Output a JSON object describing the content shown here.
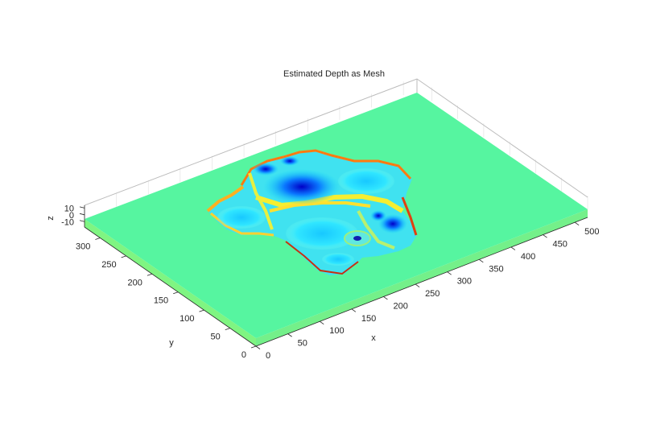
{
  "chart_data": {
    "type": "surface",
    "title": "Estimated Depth as Mesh",
    "xlabel": "x",
    "ylabel": "y",
    "zlabel": "z",
    "xlim": [
      0,
      520
    ],
    "ylim": [
      0,
      330
    ],
    "zlim": [
      -18,
      14
    ],
    "x_ticks": [
      0,
      50,
      100,
      150,
      200,
      250,
      300,
      350,
      400,
      450,
      500
    ],
    "y_ticks": [
      0,
      50,
      100,
      150,
      200,
      250,
      300
    ],
    "z_ticks": [
      -10,
      0,
      10
    ],
    "grid": true,
    "colormap": "jet",
    "base_color": "#56f5a0",
    "side_color": "#7ff582"
  }
}
